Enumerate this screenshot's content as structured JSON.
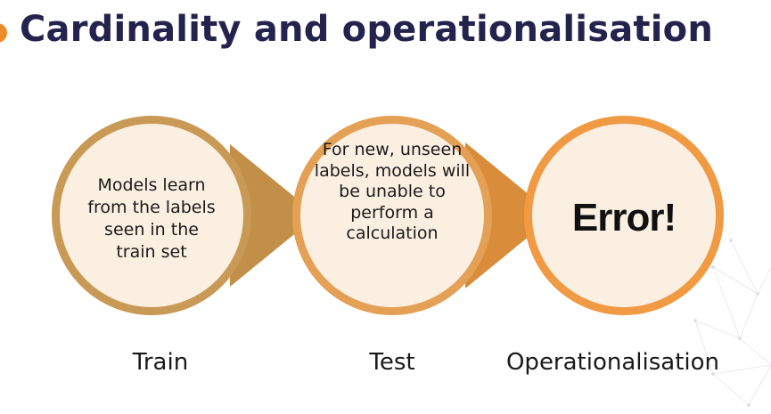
{
  "title": "Cardinality and operationalisation",
  "stages": [
    {
      "label": "Train",
      "text": "Models learn from the labels seen in the train set"
    },
    {
      "label": "Test",
      "text": "For new, unseen labels, models will be unable to perform a calculation"
    },
    {
      "label": "Operationalisation",
      "text": "Error!"
    }
  ],
  "colors": {
    "title": "#23234d",
    "accent": "#ee8a2a",
    "stage1_ring": "#c99a55",
    "stage1_arrow": "#c28f48",
    "stage2_ring": "#e4a055",
    "stage2_arrow": "#d98c3a",
    "stage3_ring": "#f09a44",
    "fill_light": "#fbefe2"
  }
}
